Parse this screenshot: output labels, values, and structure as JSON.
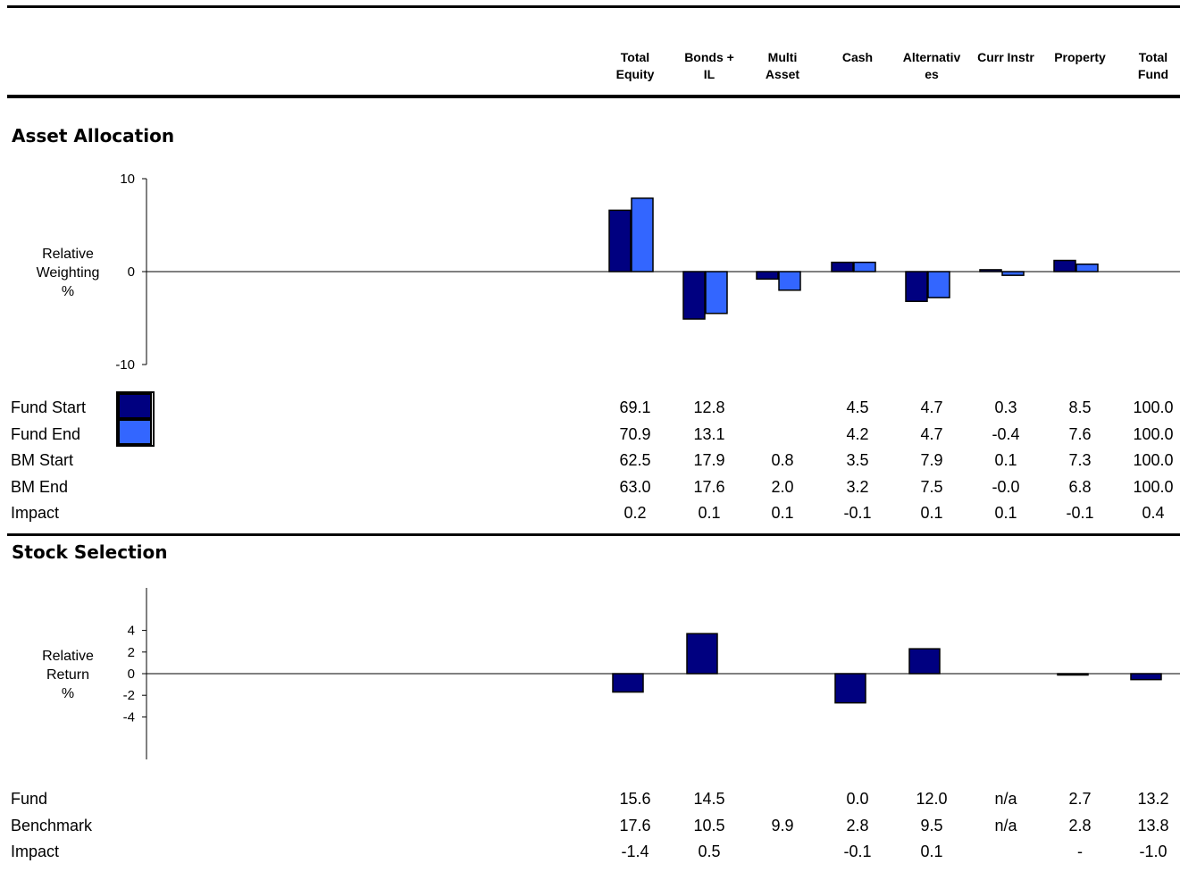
{
  "columns": [
    [
      "Total",
      "Equity"
    ],
    [
      "Bonds +",
      "IL"
    ],
    [
      "Multi",
      "Asset"
    ],
    [
      "",
      "Cash"
    ],
    [
      "Alternativ",
      "es"
    ],
    [
      "",
      "Curr Instr"
    ],
    [
      "",
      "Property"
    ],
    [
      "Total",
      "Fund"
    ]
  ],
  "asset_allocation": {
    "title": "Asset Allocation",
    "ylabel": [
      "Relative",
      "Weighting",
      "%"
    ],
    "rows": [
      {
        "label": "Fund Start",
        "values": [
          "69.1",
          "12.8",
          "",
          "4.5",
          "4.7",
          "0.3",
          "8.5",
          "100.0"
        ]
      },
      {
        "label": "Fund End",
        "values": [
          "70.9",
          "13.1",
          "",
          "4.2",
          "4.7",
          "-0.4",
          "7.6",
          "100.0"
        ]
      },
      {
        "label": "BM Start",
        "values": [
          "62.5",
          "17.9",
          "0.8",
          "3.5",
          "7.9",
          "0.1",
          "7.3",
          "100.0"
        ]
      },
      {
        "label": "BM End",
        "values": [
          "63.0",
          "17.6",
          "2.0",
          "3.2",
          "7.5",
          "-0.0",
          "6.8",
          "100.0"
        ]
      },
      {
        "label": "Impact",
        "values": [
          "0.2",
          "0.1",
          "0.1",
          "-0.1",
          "0.1",
          "0.1",
          "-0.1",
          "0.4"
        ]
      }
    ]
  },
  "stock_selection": {
    "title": "Stock Selection",
    "ylabel": [
      "Relative",
      "Return",
      "%"
    ],
    "rows": [
      {
        "label": "Fund",
        "values": [
          "15.6",
          "14.5",
          "",
          "0.0",
          "12.0",
          "n/a",
          "2.7",
          "13.2"
        ]
      },
      {
        "label": "Benchmark",
        "values": [
          "17.6",
          "10.5",
          "9.9",
          "2.8",
          "9.5",
          "n/a",
          "2.8",
          "13.8"
        ]
      },
      {
        "label": "Impact",
        "values": [
          "-1.4",
          "0.5",
          "",
          "-0.1",
          "0.1",
          "",
          "-",
          "-1.0"
        ]
      }
    ]
  },
  "colors": {
    "fund_start": "#000080",
    "fund_end": "#3366FF",
    "selection": "#000080"
  },
  "chart_data": [
    {
      "type": "bar",
      "title": "Asset Allocation",
      "ylabel": "Relative Weighting %",
      "categories": [
        "Total Equity",
        "Bonds + IL",
        "Multi Asset",
        "Cash",
        "Alternatives",
        "Curr Instr",
        "Property",
        "Total Fund"
      ],
      "ylim": [
        -10,
        10
      ],
      "yticks": [
        10,
        0,
        -10
      ],
      "series": [
        {
          "name": "Fund Start",
          "values": [
            6.6,
            -5.1,
            -0.8,
            1.0,
            -3.2,
            0.2,
            1.2,
            0
          ]
        },
        {
          "name": "Fund End",
          "values": [
            7.9,
            -4.5,
            -2.0,
            1.0,
            -2.8,
            -0.4,
            0.8,
            0
          ]
        }
      ]
    },
    {
      "type": "bar",
      "title": "Stock Selection",
      "ylabel": "Relative Return %",
      "categories": [
        "Total Equity",
        "Bonds + IL",
        "Multi Asset",
        "Cash",
        "Alternatives",
        "Curr Instr",
        "Property",
        "Total Fund"
      ],
      "ylim": [
        -4,
        4
      ],
      "yticks": [
        4,
        2,
        0,
        -2,
        -4
      ],
      "series": [
        {
          "values": [
            -1.7,
            3.7,
            0,
            -2.7,
            2.3,
            0,
            -0.1,
            -0.55
          ]
        }
      ]
    }
  ]
}
